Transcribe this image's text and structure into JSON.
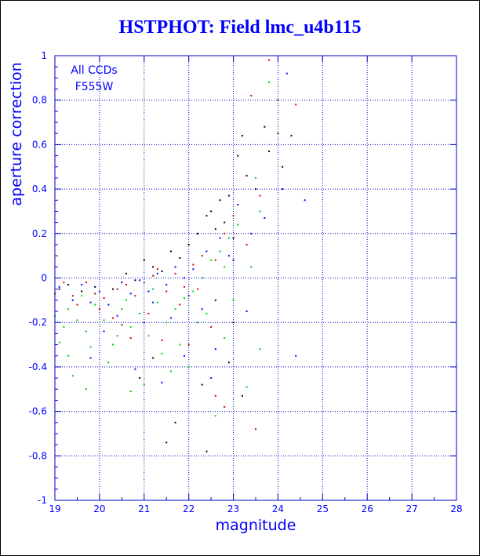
{
  "chart_data": {
    "type": "scatter",
    "title": "HSTPHOT: Field lmc_u4b115",
    "xlabel": "magnitude",
    "ylabel": "aperture correction",
    "xlim": [
      19,
      28
    ],
    "ylim": [
      -1,
      1
    ],
    "x_ticks": [
      19,
      20,
      21,
      22,
      23,
      24,
      25,
      26,
      27,
      28
    ],
    "y_ticks": [
      -1,
      -0.8,
      -0.6,
      -0.4,
      -0.2,
      0,
      0.2,
      0.4,
      0.6,
      0.8,
      1
    ],
    "x_tick_labels": [
      "19",
      "20",
      "21",
      "22",
      "23",
      "24",
      "25",
      "26",
      "27",
      "28"
    ],
    "y_tick_labels": [
      "-1",
      "-0.8",
      "-0.6",
      "-0.4",
      "-0.2",
      "0",
      "0.2",
      "0.4",
      "0.6",
      "0.8",
      "1"
    ],
    "grid": true,
    "annotations": [
      "All CCDs",
      "F555W"
    ],
    "colors": {
      "frame": "#0000cc",
      "grid": "#0000cc",
      "title": "#0000ff",
      "series": [
        "#000000",
        "#cc0000",
        "#00cc00",
        "#0000ff"
      ]
    },
    "series": [
      {
        "color": "#000000",
        "points": [
          [
            19.1,
            -0.05
          ],
          [
            19.3,
            -0.03
          ],
          [
            19.6,
            -0.06
          ],
          [
            19.9,
            -0.04
          ],
          [
            20.3,
            -0.05
          ],
          [
            20.6,
            0.02
          ],
          [
            20.8,
            -0.01
          ],
          [
            21.0,
            0.08
          ],
          [
            21.2,
            0.05
          ],
          [
            21.4,
            0.03
          ],
          [
            21.6,
            0.12
          ],
          [
            21.8,
            0.09
          ],
          [
            22.0,
            0.15
          ],
          [
            22.2,
            0.2
          ],
          [
            22.4,
            0.28
          ],
          [
            22.5,
            0.3
          ],
          [
            22.6,
            0.22
          ],
          [
            22.7,
            0.35
          ],
          [
            22.8,
            0.25
          ],
          [
            22.9,
            0.37
          ],
          [
            23.0,
            0.18
          ],
          [
            23.1,
            0.55
          ],
          [
            23.2,
            0.64
          ],
          [
            23.3,
            0.46
          ],
          [
            23.5,
            0.4
          ],
          [
            23.7,
            0.68
          ],
          [
            23.8,
            0.57
          ],
          [
            24.0,
            0.65
          ],
          [
            24.1,
            0.5
          ],
          [
            24.3,
            0.64
          ],
          [
            22.3,
            -0.48
          ],
          [
            21.7,
            -0.65
          ],
          [
            22.4,
            -0.78
          ],
          [
            21.5,
            -0.74
          ],
          [
            23.0,
            -0.2
          ],
          [
            22.9,
            -0.38
          ],
          [
            23.2,
            -0.53
          ],
          [
            21.2,
            -0.36
          ],
          [
            20.9,
            -0.45
          ],
          [
            22.6,
            -0.1
          ]
        ]
      },
      {
        "color": "#cc0000",
        "points": [
          [
            19.0,
            -0.07
          ],
          [
            19.2,
            -0.02
          ],
          [
            19.4,
            -0.08
          ],
          [
            19.7,
            -0.02
          ],
          [
            19.9,
            -0.07
          ],
          [
            20.1,
            -0.09
          ],
          [
            20.4,
            -0.05
          ],
          [
            20.6,
            -0.03
          ],
          [
            20.8,
            -0.08
          ],
          [
            21.0,
            -0.02
          ],
          [
            21.2,
            0.01
          ],
          [
            21.3,
            0.04
          ],
          [
            21.5,
            -0.06
          ],
          [
            21.7,
            0.02
          ],
          [
            21.9,
            -0.04
          ],
          [
            22.1,
            0.06
          ],
          [
            22.3,
            0.1
          ],
          [
            22.6,
            0.08
          ],
          [
            22.8,
            0.2
          ],
          [
            23.0,
            0.28
          ],
          [
            23.4,
            0.82
          ],
          [
            23.8,
            0.98
          ],
          [
            24.0,
            0.8
          ],
          [
            24.4,
            0.78
          ],
          [
            23.3,
            0.15
          ],
          [
            23.6,
            0.37
          ],
          [
            22.5,
            -0.22
          ],
          [
            22.0,
            -0.3
          ],
          [
            21.4,
            -0.28
          ],
          [
            20.7,
            -0.27
          ],
          [
            22.8,
            -0.58
          ],
          [
            23.5,
            -0.68
          ],
          [
            22.6,
            -0.53
          ],
          [
            20.3,
            -0.18
          ],
          [
            21.8,
            -0.12
          ],
          [
            19.5,
            -0.12
          ],
          [
            20.0,
            -0.14
          ],
          [
            20.5,
            -0.21
          ],
          [
            21.1,
            -0.16
          ],
          [
            22.2,
            -0.05
          ]
        ]
      },
      {
        "color": "#00cc00",
        "points": [
          [
            19.0,
            -0.17
          ],
          [
            19.1,
            -0.29
          ],
          [
            19.3,
            -0.14
          ],
          [
            19.5,
            -0.19
          ],
          [
            19.7,
            -0.24
          ],
          [
            19.9,
            -0.12
          ],
          [
            20.1,
            -0.19
          ],
          [
            20.3,
            -0.3
          ],
          [
            20.5,
            -0.14
          ],
          [
            20.7,
            -0.22
          ],
          [
            20.9,
            -0.16
          ],
          [
            21.1,
            -0.26
          ],
          [
            21.3,
            -0.11
          ],
          [
            21.5,
            -0.2
          ],
          [
            21.7,
            -0.14
          ],
          [
            21.9,
            -0.09
          ],
          [
            22.1,
            -0.06
          ],
          [
            22.3,
            0.0
          ],
          [
            22.5,
            0.08
          ],
          [
            22.7,
            0.12
          ],
          [
            22.9,
            0.18
          ],
          [
            23.1,
            0.24
          ],
          [
            23.4,
            0.05
          ],
          [
            23.6,
            0.3
          ],
          [
            23.8,
            0.88
          ],
          [
            19.4,
            -0.44
          ],
          [
            19.7,
            -0.5
          ],
          [
            20.7,
            -0.51
          ],
          [
            21.0,
            -0.48
          ],
          [
            21.4,
            -0.34
          ],
          [
            22.0,
            -0.4
          ],
          [
            22.8,
            -0.27
          ],
          [
            23.3,
            -0.49
          ],
          [
            23.6,
            -0.32
          ],
          [
            22.6,
            -0.62
          ],
          [
            19.2,
            -0.22
          ],
          [
            19.8,
            -0.31
          ],
          [
            20.2,
            -0.38
          ],
          [
            21.6,
            -0.42
          ],
          [
            22.4,
            -0.16
          ],
          [
            19.6,
            -0.08
          ],
          [
            20.6,
            -0.1
          ],
          [
            21.2,
            -0.05
          ],
          [
            22.2,
            -0.2
          ],
          [
            23.0,
            -0.1
          ],
          [
            23.5,
            0.45
          ],
          [
            22.8,
            0.05
          ],
          [
            20.4,
            -0.26
          ],
          [
            21.8,
            -0.3
          ],
          [
            19.3,
            -0.35
          ]
        ]
      },
      {
        "color": "#0000ff",
        "points": [
          [
            19.1,
            -0.04
          ],
          [
            19.4,
            -0.1
          ],
          [
            19.6,
            -0.03
          ],
          [
            19.8,
            -0.11
          ],
          [
            20.0,
            -0.06
          ],
          [
            20.2,
            -0.12
          ],
          [
            20.5,
            -0.02
          ],
          [
            20.7,
            -0.07
          ],
          [
            20.9,
            -0.01
          ],
          [
            21.1,
            -0.06
          ],
          [
            21.3,
            0.02
          ],
          [
            21.5,
            -0.03
          ],
          [
            21.7,
            0.05
          ],
          [
            21.9,
            0.0
          ],
          [
            22.1,
            0.04
          ],
          [
            22.4,
            0.12
          ],
          [
            22.7,
            0.18
          ],
          [
            22.9,
            0.1
          ],
          [
            23.1,
            0.33
          ],
          [
            24.2,
            0.92
          ],
          [
            24.6,
            0.35
          ],
          [
            24.1,
            0.4
          ],
          [
            23.4,
            0.2
          ],
          [
            23.7,
            0.27
          ],
          [
            21.6,
            -0.18
          ],
          [
            22.3,
            -0.14
          ],
          [
            21.0,
            -0.2
          ],
          [
            20.4,
            -0.17
          ],
          [
            21.9,
            -0.35
          ],
          [
            22.6,
            -0.32
          ],
          [
            21.4,
            -0.47
          ],
          [
            20.8,
            -0.41
          ],
          [
            19.8,
            -0.36
          ],
          [
            24.4,
            -0.35
          ],
          [
            23.3,
            -0.15
          ],
          [
            21.2,
            -0.11
          ],
          [
            20.1,
            -0.24
          ],
          [
            22.5,
            -0.45
          ],
          [
            22.0,
            -0.08
          ],
          [
            23.0,
            0.08
          ]
        ]
      }
    ]
  }
}
